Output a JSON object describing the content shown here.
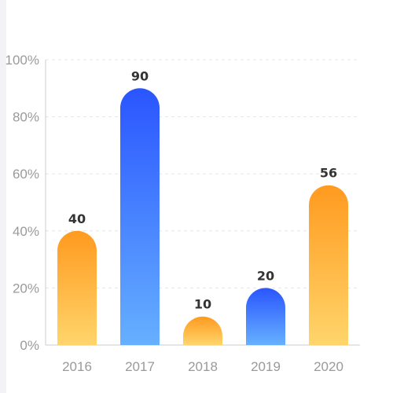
{
  "chart_data": {
    "type": "bar",
    "categories": [
      "2016",
      "2017",
      "2018",
      "2019",
      "2020"
    ],
    "values": [
      40,
      90,
      10,
      20,
      56
    ],
    "data_labels": [
      "40",
      "90",
      "10",
      "20",
      "56"
    ],
    "ylim": [
      0,
      100
    ],
    "yticks": [
      0,
      20,
      40,
      60,
      80,
      100
    ],
    "ytick_labels": [
      "0%",
      "20%",
      "40%",
      "60%",
      "80%",
      "100%"
    ],
    "grid": true,
    "bar_colors": [
      "orange",
      "blue",
      "orange",
      "blue",
      "orange"
    ],
    "gradients": {
      "orange": {
        "top": "#ff9a1f",
        "bottom": "#ffd56b"
      },
      "blue": {
        "top": "#2a55ff",
        "bottom": "#66b0ff"
      }
    },
    "gridline_color": "#e6e6e6",
    "axis_color": "#cccccc"
  }
}
